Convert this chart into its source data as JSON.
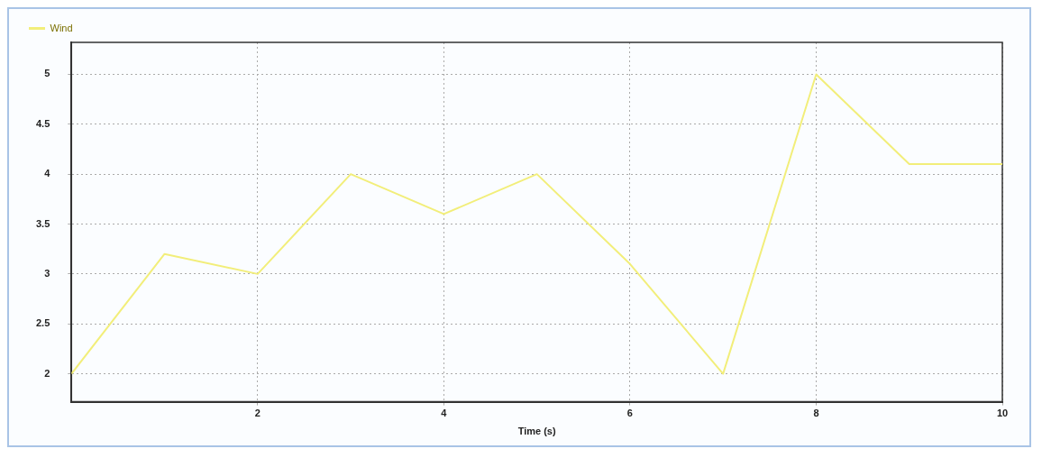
{
  "chart_data": {
    "type": "line",
    "xlabel": "Time (s)",
    "x": [
      0,
      1,
      2,
      3,
      4,
      5,
      6,
      7,
      8,
      9,
      10
    ],
    "series": [
      {
        "name": "Wind",
        "color": "#f2ee7a",
        "values": [
          2,
          3.2,
          3.0,
          4.0,
          3.6,
          4.0,
          3.1,
          2.0,
          5.0,
          4.1,
          4.1
        ]
      }
    ],
    "xlim": [
      0,
      10
    ],
    "xticks": [
      2,
      4,
      6,
      8,
      10
    ],
    "ylim": [
      1.72,
      5.32
    ],
    "yticks": [
      2,
      2.5,
      3,
      3.5,
      4,
      4.5,
      5
    ],
    "grid": true,
    "legend": "top left",
    "marker": "none",
    "line_style": "solid"
  }
}
